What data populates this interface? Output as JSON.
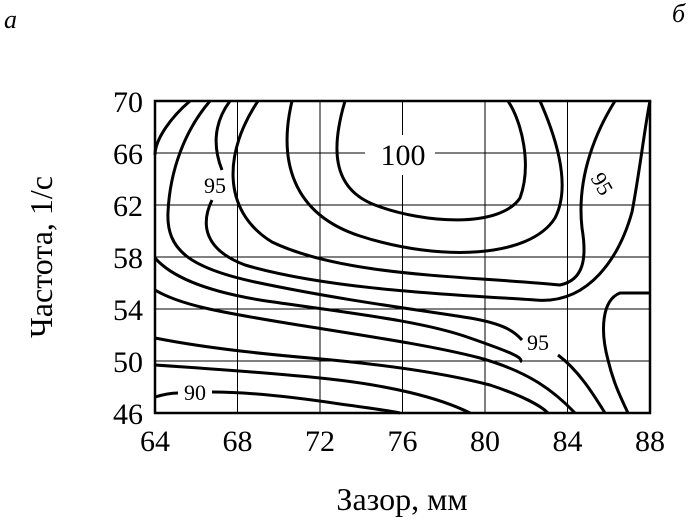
{
  "chart_data": {
    "type": "contour",
    "panel_labels": [
      "а",
      "б"
    ],
    "xlabel": "Зазор, мм",
    "ylabel": "Частота, 1/с",
    "xlim": [
      64,
      88
    ],
    "xticks": [
      64,
      68,
      72,
      76,
      80,
      84,
      88
    ],
    "ylim": [
      46,
      70
    ],
    "yticks": [
      46,
      50,
      54,
      58,
      62,
      66,
      70
    ],
    "grid": true,
    "contour_labels": [
      100,
      95,
      95,
      95,
      90
    ]
  }
}
